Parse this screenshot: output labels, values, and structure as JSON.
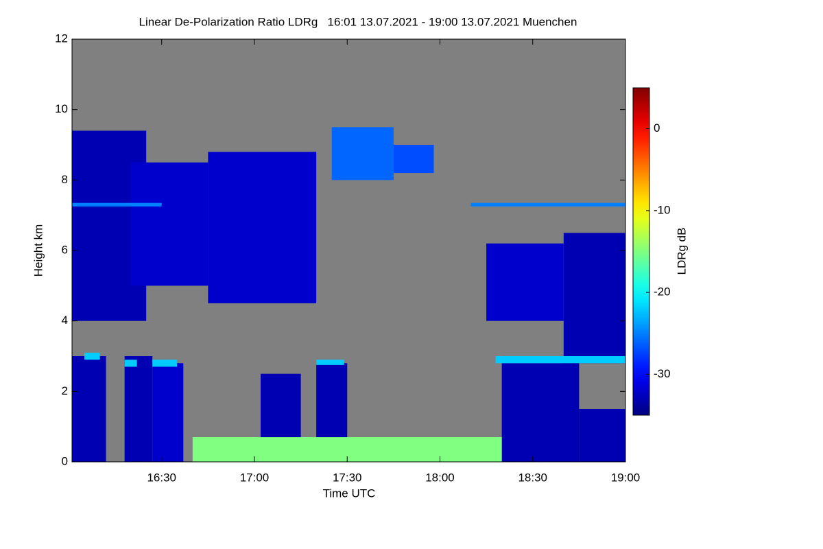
{
  "chart_data": {
    "type": "heatmap",
    "title": "Linear De-Polarization Ratio LDRg   16:01 13.07.2021 - 19:00 13.07.2021 Muenchen",
    "x_label": "Time UTC",
    "y_label": "Height km",
    "colorbar_label": "LDRg dB",
    "xlim": [
      "16:01",
      "19:00"
    ],
    "xticks": [
      "16:30",
      "17:00",
      "17:30",
      "18:00",
      "18:30",
      "19:00"
    ],
    "ylim": [
      0,
      12
    ],
    "yticks": [
      0,
      2,
      4,
      6,
      8,
      10,
      12
    ],
    "clim": [
      -35,
      5
    ],
    "cticks": [
      0,
      -10,
      -20,
      -30
    ],
    "colormap": "jet",
    "background": "#808080",
    "layers": [
      {
        "x": [
          "16:01",
          "16:25"
        ],
        "y": [
          4,
          9.4
        ],
        "value": -33
      },
      {
        "x": [
          "16:20",
          "16:45"
        ],
        "y": [
          5,
          8.5
        ],
        "value": -32
      },
      {
        "x": [
          "16:45",
          "17:20"
        ],
        "y": [
          4.5,
          8.8
        ],
        "value": -32
      },
      {
        "x": [
          "17:25",
          "17:45"
        ],
        "y": [
          8,
          9.5
        ],
        "value": -26
      },
      {
        "x": [
          "17:45",
          "17:58"
        ],
        "y": [
          8.2,
          9
        ],
        "value": -27
      },
      {
        "x": [
          "18:15",
          "18:40"
        ],
        "y": [
          4,
          6.2
        ],
        "value": -32
      },
      {
        "x": [
          "18:40",
          "19:00"
        ],
        "y": [
          2.8,
          6.5
        ],
        "value": -33
      },
      {
        "x": [
          "16:01",
          "16:12"
        ],
        "y": [
          0,
          3
        ],
        "value": -33
      },
      {
        "x": [
          "16:18",
          "16:27"
        ],
        "y": [
          0,
          3
        ],
        "value": -33
      },
      {
        "x": [
          "16:27",
          "16:37"
        ],
        "y": [
          0,
          2.8
        ],
        "value": -32
      },
      {
        "x": [
          "17:02",
          "17:15"
        ],
        "y": [
          0,
          2.5
        ],
        "value": -33
      },
      {
        "x": [
          "17:20",
          "17:30"
        ],
        "y": [
          0,
          2.8
        ],
        "value": -33
      },
      {
        "x": [
          "18:20",
          "18:45"
        ],
        "y": [
          0,
          2.8
        ],
        "value": -33
      },
      {
        "x": [
          "18:45",
          "19:00"
        ],
        "y": [
          0,
          1.5
        ],
        "value": -33
      },
      {
        "x": [
          "16:40",
          "18:20"
        ],
        "y": [
          0,
          0.7
        ],
        "value": -15
      },
      {
        "x": [
          "16:05",
          "16:10"
        ],
        "y": [
          2.9,
          3.1
        ],
        "value": -22
      },
      {
        "x": [
          "16:18",
          "16:22"
        ],
        "y": [
          2.7,
          2.9
        ],
        "value": -22
      },
      {
        "x": [
          "16:27",
          "16:35"
        ],
        "y": [
          2.7,
          2.9
        ],
        "value": -22
      },
      {
        "x": [
          "17:20",
          "17:29"
        ],
        "y": [
          2.75,
          2.9
        ],
        "value": -22
      },
      {
        "x": [
          "18:18",
          "19:00"
        ],
        "y": [
          2.8,
          3
        ],
        "value": -22
      },
      {
        "x": [
          "16:01",
          "16:30"
        ],
        "y": [
          7.25,
          7.35
        ],
        "value": -25
      },
      {
        "x": [
          "18:10",
          "19:00"
        ],
        "y": [
          7.25,
          7.35
        ],
        "value": -25
      }
    ]
  }
}
